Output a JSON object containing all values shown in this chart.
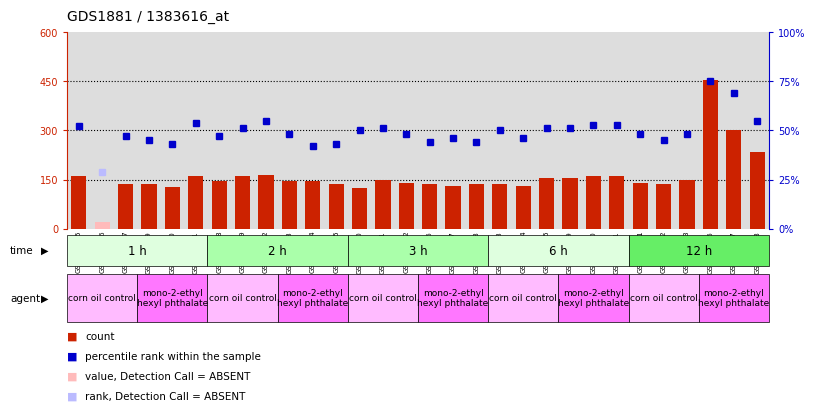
{
  "title": "GDS1881 / 1383616_at",
  "samples": [
    "GSM100955",
    "GSM100956",
    "GSM100957",
    "GSM100969",
    "GSM100970",
    "GSM100971",
    "GSM100958",
    "GSM100959",
    "GSM100972",
    "GSM100973",
    "GSM100974",
    "GSM100975",
    "GSM100960",
    "GSM100961",
    "GSM100962",
    "GSM100976",
    "GSM100977",
    "GSM100978",
    "GSM100963",
    "GSM100964",
    "GSM100965",
    "GSM100979",
    "GSM100980",
    "GSM100981",
    "GSM100951",
    "GSM100952",
    "GSM100953",
    "GSM100966",
    "GSM100967",
    "GSM100968"
  ],
  "count_values": [
    160,
    20,
    135,
    135,
    128,
    160,
    145,
    160,
    165,
    145,
    145,
    135,
    125,
    150,
    140,
    135,
    130,
    135,
    135,
    130,
    155,
    155,
    160,
    160,
    140,
    135,
    150,
    455,
    300,
    235
  ],
  "count_absent": [
    false,
    true,
    false,
    false,
    false,
    false,
    false,
    false,
    false,
    false,
    false,
    false,
    false,
    false,
    false,
    false,
    false,
    false,
    false,
    false,
    false,
    false,
    false,
    false,
    false,
    false,
    false,
    false,
    false,
    false
  ],
  "rank_values": [
    52,
    29,
    47,
    45,
    43,
    54,
    47,
    51,
    55,
    48,
    42,
    43,
    50,
    51,
    48,
    44,
    46,
    44,
    50,
    46,
    51,
    51,
    53,
    53,
    48,
    45,
    48,
    75,
    69,
    55
  ],
  "rank_absent": [
    false,
    true,
    false,
    false,
    false,
    false,
    false,
    false,
    false,
    false,
    false,
    false,
    false,
    false,
    false,
    false,
    false,
    false,
    false,
    false,
    false,
    false,
    false,
    false,
    false,
    false,
    false,
    false,
    false,
    false
  ],
  "time_groups": [
    {
      "label": "1 h",
      "start": 0,
      "end": 6,
      "color": "#dfffdf"
    },
    {
      "label": "2 h",
      "start": 6,
      "end": 12,
      "color": "#aaffaa"
    },
    {
      "label": "3 h",
      "start": 12,
      "end": 18,
      "color": "#aaffaa"
    },
    {
      "label": "6 h",
      "start": 18,
      "end": 24,
      "color": "#dfffdf"
    },
    {
      "label": "12 h",
      "start": 24,
      "end": 30,
      "color": "#66ee66"
    }
  ],
  "agent_groups": [
    {
      "label": "corn oil control",
      "start": 0,
      "end": 3,
      "color": "#ffbbff"
    },
    {
      "label": "mono-2-ethyl\nhexyl phthalate",
      "start": 3,
      "end": 6,
      "color": "#ff77ff"
    },
    {
      "label": "corn oil control",
      "start": 6,
      "end": 9,
      "color": "#ffbbff"
    },
    {
      "label": "mono-2-ethyl\nhexyl phthalate",
      "start": 9,
      "end": 12,
      "color": "#ff77ff"
    },
    {
      "label": "corn oil control",
      "start": 12,
      "end": 15,
      "color": "#ffbbff"
    },
    {
      "label": "mono-2-ethyl\nhexyl phthalate",
      "start": 15,
      "end": 18,
      "color": "#ff77ff"
    },
    {
      "label": "corn oil control",
      "start": 18,
      "end": 21,
      "color": "#ffbbff"
    },
    {
      "label": "mono-2-ethyl\nhexyl phthalate",
      "start": 21,
      "end": 24,
      "color": "#ff77ff"
    },
    {
      "label": "corn oil control",
      "start": 24,
      "end": 27,
      "color": "#ffbbff"
    },
    {
      "label": "mono-2-ethyl\nhexyl phthalate",
      "start": 27,
      "end": 30,
      "color": "#ff77ff"
    }
  ],
  "count_color": "#cc2200",
  "count_absent_color": "#ffbbbb",
  "rank_color": "#0000cc",
  "rank_absent_color": "#bbbbff",
  "ylim_left": [
    0,
    600
  ],
  "ylim_right": [
    0,
    100
  ],
  "yticks_left": [
    0,
    150,
    300,
    450,
    600
  ],
  "yticks_right": [
    0,
    25,
    50,
    75,
    100
  ],
  "ytick_labels_left": [
    "0",
    "150",
    "300",
    "450",
    "600"
  ],
  "ytick_labels_right": [
    "0%",
    "25%",
    "50%",
    "75%",
    "100%"
  ],
  "bar_width": 0.65,
  "bg_color": "#dddddd",
  "fig_width": 8.16,
  "fig_height": 4.14,
  "dpi": 100
}
